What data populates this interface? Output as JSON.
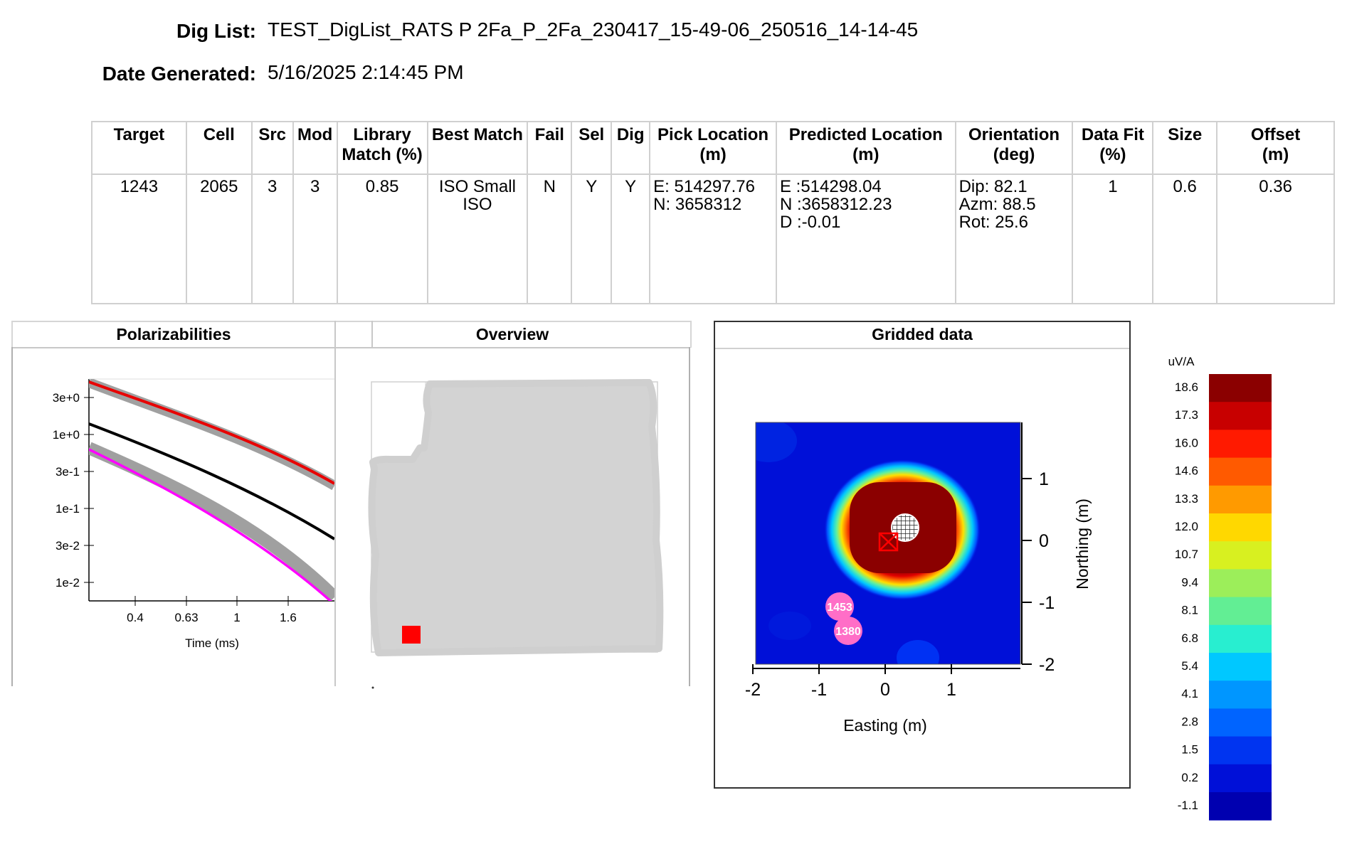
{
  "header": {
    "dig_list_label": "Dig List:",
    "dig_list_value": "TEST_DigList_RATS P 2Fa_P_2Fa_230417_15-49-06_250516_14-14-45",
    "date_label": "Date Generated:",
    "date_value": "5/16/2025 2:14:45 PM"
  },
  "table": {
    "columns": [
      {
        "line1": "Target",
        "line2": ""
      },
      {
        "line1": "Cell",
        "line2": ""
      },
      {
        "line1": "Src",
        "line2": ""
      },
      {
        "line1": "Mod",
        "line2": ""
      },
      {
        "line1": "Library",
        "line2": "Match (%)"
      },
      {
        "line1": "Best Match",
        "line2": ""
      },
      {
        "line1": "Fail",
        "line2": ""
      },
      {
        "line1": "Sel",
        "line2": ""
      },
      {
        "line1": "Dig",
        "line2": ""
      },
      {
        "line1": "Pick Location",
        "line2": "(m)"
      },
      {
        "line1": "Predicted Location",
        "line2": "(m)"
      },
      {
        "line1": "Orientation",
        "line2": "(deg)"
      },
      {
        "line1": "Data Fit",
        "line2": "(%)"
      },
      {
        "line1": "Size",
        "line2": ""
      },
      {
        "line1": "Offset",
        "line2": "(m)"
      }
    ],
    "row": {
      "target": "1243",
      "cell": "2065",
      "src": "3",
      "mod": "3",
      "library_match": "0.85",
      "best_match_1": "ISO Small",
      "best_match_2": "ISO",
      "fail": "N",
      "sel": "Y",
      "dig": "Y",
      "pick_e": "E: 514297.76",
      "pick_n": "N: 3658312",
      "pred_e": "E :514298.04",
      "pred_n": "N :3658312.23",
      "pred_d": "D :-0.01",
      "dip": "Dip: 82.1",
      "azm": "Azm: 88.5",
      "rot": "Rot: 25.6",
      "data_fit": "1",
      "size": "0.6",
      "offset": "0.36"
    }
  },
  "panels": {
    "polarizabilities_title": "Polarizabilities",
    "overview_title": "Overview",
    "gridded_title": "Gridded data"
  },
  "polarizabilities": {
    "y_ticks": [
      "3e+0",
      "1e+0",
      "3e-1",
      "1e-1",
      "3e-2",
      "1e-2"
    ],
    "x_ticks": [
      "0.4",
      "0.63",
      "1",
      "1.6"
    ],
    "xlabel": "Time (ms)",
    "colors": {
      "primary": "#e80000",
      "secondary": "#000000",
      "tertiary": "#ff00ff",
      "envelope": "#a0a0a0"
    }
  },
  "gridded": {
    "x_ticks": [
      "-2",
      "-1",
      "0",
      "1"
    ],
    "y_ticks": [
      "1",
      "0",
      "-1",
      "-2"
    ],
    "xlabel": "Easting (m)",
    "ylabel": "Northing (m)",
    "markers": [
      "1453",
      "1380"
    ]
  },
  "colorbar": {
    "unit": "uV/A",
    "labels": [
      "18.6",
      "17.3",
      "16.0",
      "14.6",
      "13.3",
      "12.0",
      "10.7",
      "9.4",
      "8.1",
      "6.8",
      "5.4",
      "4.1",
      "2.8",
      "1.5",
      "0.2",
      "-1.1"
    ],
    "colors": [
      "#8b0000",
      "#c80000",
      "#ff1a00",
      "#ff5a00",
      "#ff9a00",
      "#ffd800",
      "#d8f020",
      "#9cee5a",
      "#62ee94",
      "#28eed0",
      "#00c8ff",
      "#0096ff",
      "#0064ff",
      "#0034f0",
      "#0010d8",
      "#0000b0"
    ]
  }
}
